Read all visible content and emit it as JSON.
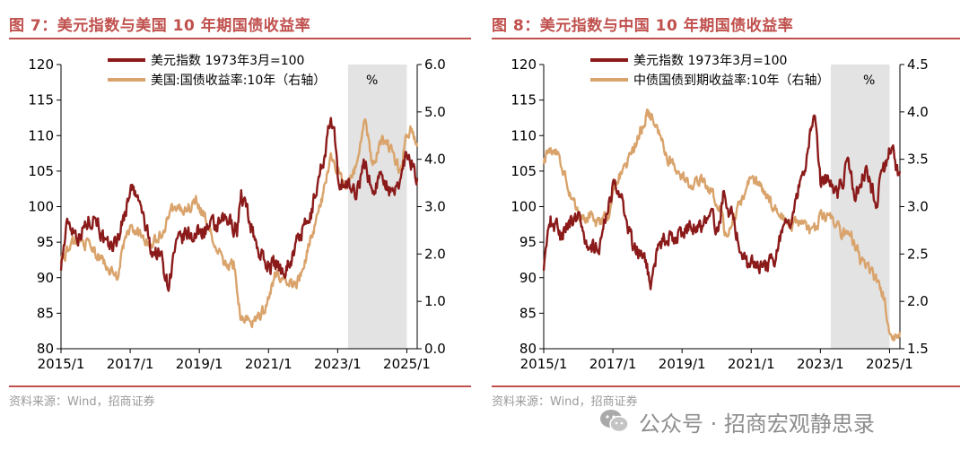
{
  "colors": {
    "accent": "#c0504d",
    "dxy": "#8b1a1a",
    "yield": "#d9a36b",
    "shade": "#e3e3e3"
  },
  "fig7": {
    "title": "图 7：美元指数与美国 10 年期国债收益率",
    "source": "资料来源：Wind，招商证券"
  },
  "fig8": {
    "title": "图 8：美元指数与中国 10 年期国债收益率",
    "source": "资料来源：Wind，招商证券"
  },
  "watermark": {
    "text": "公众号 · 招商宏观静思录",
    "icon": "wechat-icon"
  },
  "chart_data": [
    {
      "type": "line",
      "title": "美元指数与美国 10 年期国债收益率",
      "x_ticks": [
        "2015/1",
        "2017/1",
        "2019/1",
        "2021/1",
        "2023/1",
        "2025/1"
      ],
      "x_range": [
        2015.0,
        2025.3
      ],
      "left_axis": {
        "min": 80,
        "max": 120,
        "step": 5,
        "ticks": [
          "80",
          "85",
          "90",
          "95",
          "100",
          "105",
          "110",
          "115",
          "120"
        ]
      },
      "right_axis": {
        "min": 0,
        "max": 6,
        "step": 1,
        "ticks": [
          "0.0",
          "1.0",
          "2.0",
          "3.0",
          "4.0",
          "5.0",
          "6.0"
        ]
      },
      "shaded_range": [
        2023.3,
        2025.0
      ],
      "legend": {
        "position": "top-center",
        "unit": "%"
      },
      "series": [
        {
          "name": "美元指数 1973年3月=100",
          "axis": "left",
          "t": [
            2015.0,
            2015.2,
            2015.5,
            2015.8,
            2016.0,
            2016.3,
            2016.6,
            2016.9,
            2017.0,
            2017.3,
            2017.6,
            2017.9,
            2018.1,
            2018.3,
            2018.6,
            2018.9,
            2019.2,
            2019.5,
            2019.8,
            2020.1,
            2020.2,
            2020.4,
            2020.7,
            2020.9,
            2021.2,
            2021.4,
            2021.7,
            2021.9,
            2022.2,
            2022.4,
            2022.6,
            2022.8,
            2022.9,
            2023.0,
            2023.3,
            2023.5,
            2023.8,
            2024.0,
            2024.3,
            2024.6,
            2024.8,
            2025.0,
            2025.1,
            2025.3
          ],
          "v": [
            92,
            98,
            96,
            98,
            99,
            94,
            95,
            100,
            103,
            100,
            94,
            93,
            89,
            94,
            96,
            96,
            97,
            97,
            98,
            97,
            102,
            99,
            94,
            92,
            92,
            91,
            93,
            96,
            98,
            103,
            107,
            112,
            110,
            104,
            103,
            102,
            106,
            102,
            105,
            101,
            104,
            108,
            107,
            104
          ]
        },
        {
          "name": "美国:国债收益率:10年（右轴）",
          "axis": "right",
          "t": [
            2015.0,
            2015.2,
            2015.5,
            2015.8,
            2016.0,
            2016.3,
            2016.6,
            2016.9,
            2017.0,
            2017.3,
            2017.6,
            2017.9,
            2018.1,
            2018.3,
            2018.6,
            2018.9,
            2019.2,
            2019.5,
            2019.8,
            2020.0,
            2020.2,
            2020.3,
            2020.7,
            2020.9,
            2021.2,
            2021.5,
            2021.8,
            2022.0,
            2022.2,
            2022.5,
            2022.8,
            2023.0,
            2023.2,
            2023.5,
            2023.8,
            2024.0,
            2024.3,
            2024.6,
            2024.8,
            2025.0,
            2025.1,
            2025.3
          ],
          "v": [
            1.9,
            2.1,
            2.3,
            2.2,
            2.0,
            1.8,
            1.5,
            2.4,
            2.5,
            2.4,
            2.2,
            2.4,
            2.8,
            3.0,
            2.9,
            3.1,
            2.7,
            2.1,
            1.7,
            1.8,
            0.7,
            0.6,
            0.6,
            0.9,
            1.6,
            1.5,
            1.3,
            1.7,
            2.3,
            3.0,
            4.0,
            3.7,
            3.5,
            3.8,
            4.8,
            3.9,
            4.4,
            4.2,
            3.7,
            4.5,
            4.6,
            4.2
          ]
        }
      ]
    },
    {
      "type": "line",
      "title": "美元指数与中国 10 年期国债收益率",
      "x_ticks": [
        "2015/1",
        "2017/1",
        "2019/1",
        "2021/1",
        "2023/1",
        "2025/1"
      ],
      "x_range": [
        2015.0,
        2025.3
      ],
      "left_axis": {
        "min": 80,
        "max": 120,
        "step": 5,
        "ticks": [
          "80",
          "85",
          "90",
          "95",
          "100",
          "105",
          "110",
          "115",
          "120"
        ]
      },
      "right_axis": {
        "min": 1.5,
        "max": 4.5,
        "step": 0.5,
        "ticks": [
          "1.5",
          "2.0",
          "2.5",
          "3.0",
          "3.5",
          "4.0",
          "4.5"
        ]
      },
      "shaded_range": [
        2023.3,
        2025.0
      ],
      "legend": {
        "position": "top-center",
        "unit": "%"
      },
      "series": [
        {
          "name": "美元指数 1973年3月=100",
          "axis": "left",
          "t": [
            2015.0,
            2015.2,
            2015.5,
            2015.8,
            2016.0,
            2016.3,
            2016.6,
            2016.9,
            2017.0,
            2017.3,
            2017.6,
            2017.9,
            2018.1,
            2018.3,
            2018.6,
            2018.9,
            2019.2,
            2019.5,
            2019.8,
            2020.1,
            2020.2,
            2020.4,
            2020.7,
            2020.9,
            2021.2,
            2021.4,
            2021.7,
            2021.9,
            2022.2,
            2022.4,
            2022.6,
            2022.8,
            2022.9,
            2023.0,
            2023.3,
            2023.5,
            2023.8,
            2024.0,
            2024.3,
            2024.6,
            2024.8,
            2025.0,
            2025.1,
            2025.3
          ],
          "v": [
            92,
            98,
            96,
            98,
            99,
            94,
            95,
            100,
            103,
            100,
            94,
            93,
            89,
            94,
            96,
            96,
            97,
            97,
            98,
            97,
            102,
            99,
            94,
            92,
            92,
            91,
            93,
            96,
            98,
            103,
            107,
            112,
            110,
            104,
            103,
            102,
            106,
            102,
            105,
            101,
            104,
            108,
            107,
            104
          ]
        },
        {
          "name": "中债国债到期收益率:10年（右轴）",
          "axis": "right",
          "t": [
            2015.0,
            2015.2,
            2015.4,
            2015.7,
            2016.0,
            2016.3,
            2016.6,
            2016.9,
            2017.0,
            2017.3,
            2017.6,
            2017.9,
            2018.0,
            2018.3,
            2018.6,
            2018.9,
            2019.2,
            2019.5,
            2019.8,
            2020.1,
            2020.3,
            2020.5,
            2020.8,
            2021.0,
            2021.3,
            2021.6,
            2021.9,
            2022.2,
            2022.5,
            2022.8,
            2023.0,
            2023.3,
            2023.6,
            2023.9,
            2024.2,
            2024.5,
            2024.8,
            2025.0,
            2025.1,
            2025.3
          ],
          "v": [
            3.5,
            3.6,
            3.6,
            3.2,
            2.9,
            2.9,
            2.8,
            2.9,
            3.2,
            3.4,
            3.6,
            3.9,
            4.0,
            3.8,
            3.5,
            3.4,
            3.2,
            3.3,
            3.2,
            3.0,
            2.6,
            2.9,
            3.1,
            3.3,
            3.2,
            3.0,
            2.9,
            2.8,
            2.8,
            2.7,
            2.9,
            2.9,
            2.7,
            2.7,
            2.4,
            2.3,
            2.1,
            1.7,
            1.6,
            1.7
          ]
        }
      ]
    }
  ]
}
